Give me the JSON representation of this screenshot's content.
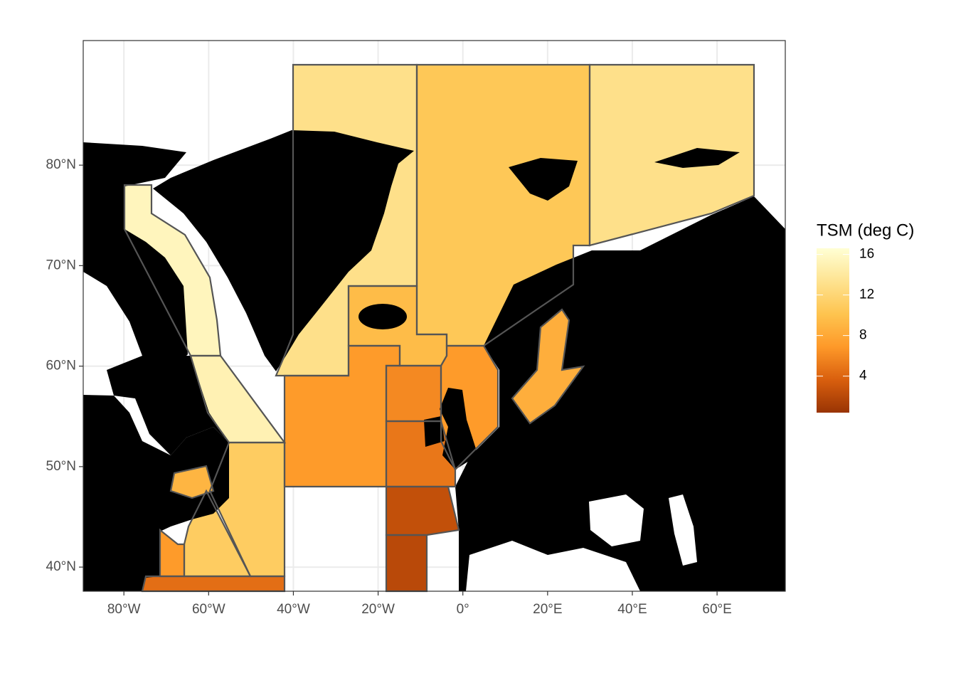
{
  "chart_data": {
    "type": "choropleth",
    "legend_title": "TSM (deg C)",
    "xlim": [
      -89.6,
      76.1
    ],
    "ylim": [
      37.6,
      92.4
    ],
    "xticks": [
      {
        "value": -80,
        "label": "80°W"
      },
      {
        "value": -60,
        "label": "60°W"
      },
      {
        "value": -40,
        "label": "40°W"
      },
      {
        "value": -20,
        "label": "20°W"
      },
      {
        "value": 0,
        "label": "0°"
      },
      {
        "value": 20,
        "label": "20°E"
      },
      {
        "value": 40,
        "label": "40°E"
      },
      {
        "value": 60,
        "label": "60°E"
      }
    ],
    "yticks": [
      {
        "value": 40,
        "label": "40°N"
      },
      {
        "value": 50,
        "label": "50°N"
      },
      {
        "value": 60,
        "label": "60°N"
      },
      {
        "value": 70,
        "label": "70°N"
      },
      {
        "value": 80,
        "label": "80°N"
      }
    ],
    "grid": true,
    "values": [
      15.5,
      15,
      13,
      10.5,
      13,
      9.5,
      7,
      7,
      6,
      5,
      2.5,
      2,
      11,
      11,
      7,
      4.5,
      9,
      8.5
    ],
    "colorbar_lim": [
      0.4,
      16.6
    ],
    "colorbar_ticks": [
      4,
      8,
      12,
      16
    ],
    "colors": [
      "#993404",
      "#d95f0e",
      "#fe9929",
      "#fec44f",
      "#fee391",
      "#ffffd4"
    ]
  }
}
